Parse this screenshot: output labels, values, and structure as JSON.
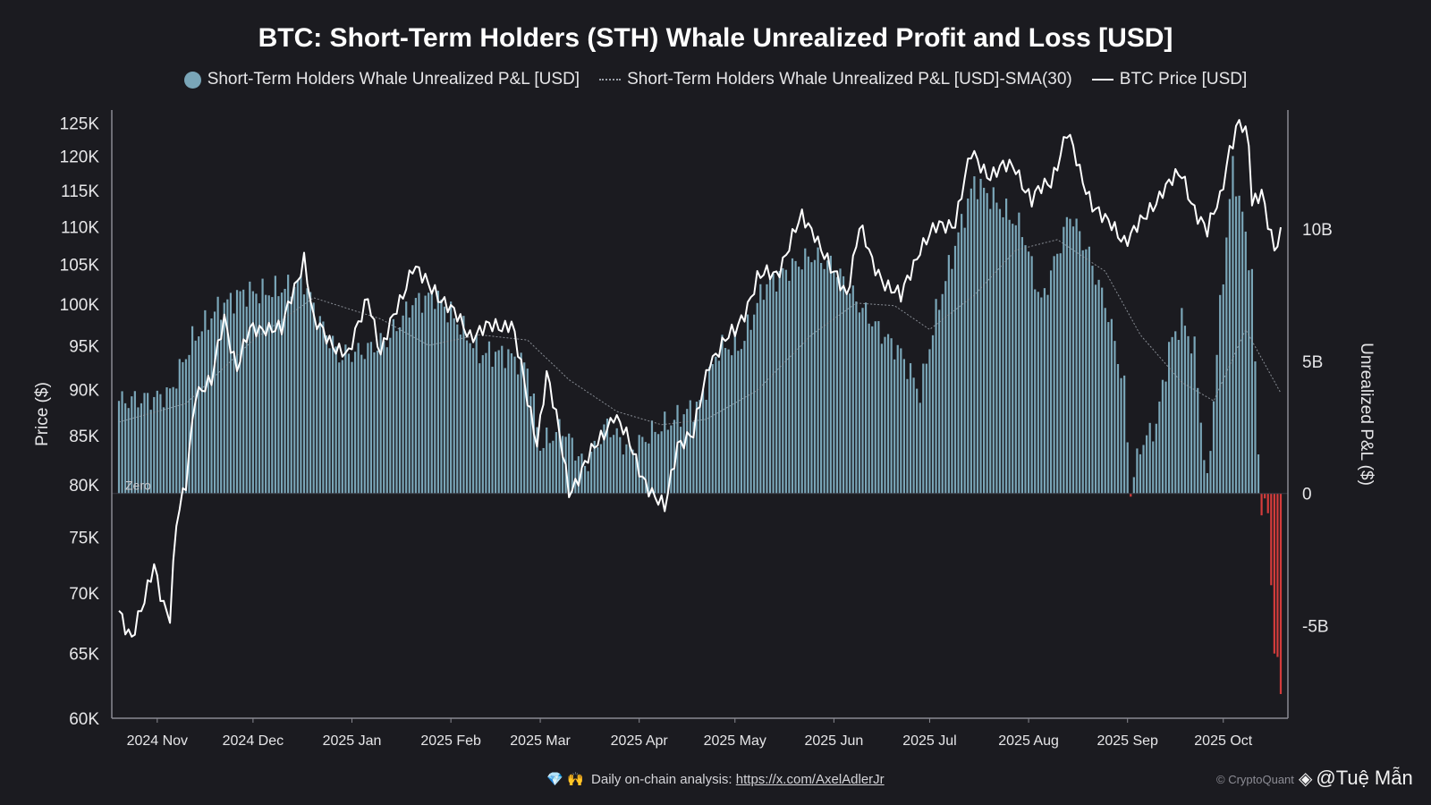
{
  "title": "BTC: Short-Term Holders (STH) Whale Unrealized Profit and Loss [USD]",
  "legend": [
    {
      "label": "Short-Term Holders Whale Unrealized P&L [USD]",
      "symbol": "dot",
      "color": "#7aa6b8"
    },
    {
      "label": "Short-Term Holders Whale Unrealized P&L [USD]-SMA(30)",
      "symbol": "dotted-line",
      "color": "#9aa0a8"
    },
    {
      "label": "BTC Price [USD]",
      "symbol": "line",
      "color": "#ffffff"
    }
  ],
  "footer": {
    "icons": "💎 🙌",
    "text": "Daily on-chain analysis:",
    "link": "https://x.com/AxelAdlerJr"
  },
  "copyright": "© CryptoQuant",
  "watermark": "@Tuệ Mẫn",
  "chart_data": {
    "type": "bar",
    "colors": {
      "positive": "#7aa6b8",
      "negative": "#d43c3c",
      "price": "#ffffff",
      "sma": "#9aa0a8",
      "background": "#1b1b20"
    },
    "x_ticks": [
      "2024 Nov",
      "2024 Dec",
      "2025 Jan",
      "2025 Feb",
      "2025 Mar",
      "2025 Apr",
      "2025 May",
      "2025 Jun",
      "2025 Jul",
      "2025 Aug",
      "2025 Sep",
      "2025 Oct"
    ],
    "y_left": {
      "label": "Price ($)",
      "scale": "log",
      "range": [
        60000,
        127000
      ],
      "ticks": [
        {
          "v": 60000,
          "t": "60K"
        },
        {
          "v": 65000,
          "t": "65K"
        },
        {
          "v": 70000,
          "t": "70K"
        },
        {
          "v": 75000,
          "t": "75K"
        },
        {
          "v": 80000,
          "t": "80K"
        },
        {
          "v": 85000,
          "t": "85K"
        },
        {
          "v": 90000,
          "t": "90K"
        },
        {
          "v": 95000,
          "t": "95K"
        },
        {
          "v": 100000,
          "t": "100K"
        },
        {
          "v": 105000,
          "t": "105K"
        },
        {
          "v": 110000,
          "t": "110K"
        },
        {
          "v": 115000,
          "t": "115K"
        },
        {
          "v": 120000,
          "t": "120K"
        },
        {
          "v": 125000,
          "t": "125K"
        }
      ]
    },
    "y_right": {
      "label": "Unrealized P&L ($)",
      "range": [
        -8.5,
        14.5
      ],
      "unit": "billion USD",
      "ticks": [
        {
          "v": -5,
          "t": "-5B"
        },
        {
          "v": 0,
          "t": "0"
        },
        {
          "v": 5,
          "t": "5B"
        },
        {
          "v": 10,
          "t": "10B"
        }
      ]
    },
    "zero_label": "Zero",
    "pnl_knots_billion": [
      [
        "2024-10-20",
        3.5
      ],
      [
        "2024-10-31",
        3.6
      ],
      [
        "2024-11-05",
        3.8
      ],
      [
        "2024-11-12",
        5.8
      ],
      [
        "2024-11-20",
        7.0
      ],
      [
        "2024-11-28",
        7.6
      ],
      [
        "2024-12-05",
        7.6
      ],
      [
        "2024-12-12",
        7.8
      ],
      [
        "2024-12-17",
        8.0
      ],
      [
        "2024-12-22",
        6.5
      ],
      [
        "2024-12-28",
        5.2
      ],
      [
        "2025-01-05",
        5.4
      ],
      [
        "2025-01-12",
        5.8
      ],
      [
        "2025-01-20",
        7.2
      ],
      [
        "2025-01-27",
        7.5
      ],
      [
        "2025-02-03",
        6.5
      ],
      [
        "2025-02-10",
        5.3
      ],
      [
        "2025-02-18",
        5.3
      ],
      [
        "2025-02-25",
        4.8
      ],
      [
        "2025-03-01",
        1.8
      ],
      [
        "2025-03-08",
        2.5
      ],
      [
        "2025-03-15",
        1.0
      ],
      [
        "2025-03-22",
        2.6
      ],
      [
        "2025-03-29",
        1.6
      ],
      [
        "2025-04-05",
        2.3
      ],
      [
        "2025-04-12",
        2.8
      ],
      [
        "2025-04-20",
        3.4
      ],
      [
        "2025-04-26",
        5.5
      ],
      [
        "2025-05-03",
        5.6
      ],
      [
        "2025-05-10",
        7.8
      ],
      [
        "2025-05-18",
        8.5
      ],
      [
        "2025-05-25",
        9.0
      ],
      [
        "2025-06-01",
        8.6
      ],
      [
        "2025-06-08",
        7.3
      ],
      [
        "2025-06-15",
        6.2
      ],
      [
        "2025-06-22",
        5.3
      ],
      [
        "2025-06-28",
        3.8
      ],
      [
        "2025-07-03",
        6.8
      ],
      [
        "2025-07-10",
        9.8
      ],
      [
        "2025-07-15",
        11.8
      ],
      [
        "2025-07-22",
        11.0
      ],
      [
        "2025-07-30",
        10.0
      ],
      [
        "2025-08-05",
        7.2
      ],
      [
        "2025-08-14",
        10.6
      ],
      [
        "2025-08-20",
        9.0
      ],
      [
        "2025-08-26",
        6.8
      ],
      [
        "2025-08-31",
        4.0
      ],
      [
        "2025-09-02",
        0.1
      ],
      [
        "2025-09-05",
        1.8
      ],
      [
        "2025-09-10",
        2.6
      ],
      [
        "2025-09-14",
        5.5
      ],
      [
        "2025-09-18",
        6.6
      ],
      [
        "2025-09-22",
        5.4
      ],
      [
        "2025-09-26",
        0.2
      ],
      [
        "2025-09-30",
        7.0
      ],
      [
        "2025-10-04",
        12.4
      ],
      [
        "2025-10-07",
        10.5
      ],
      [
        "2025-10-10",
        8.2
      ],
      [
        "2025-10-12",
        1.5
      ],
      [
        "2025-10-13",
        -0.4
      ],
      [
        "2025-10-15",
        -0.8
      ],
      [
        "2025-10-17",
        -5.8
      ],
      [
        "2025-10-19",
        -7.5
      ]
    ],
    "sma_knots_billion": [
      [
        "2024-10-20",
        2.7
      ],
      [
        "2024-11-10",
        3.4
      ],
      [
        "2024-12-01",
        5.8
      ],
      [
        "2024-12-20",
        7.4
      ],
      [
        "2025-01-10",
        6.6
      ],
      [
        "2025-01-25",
        5.6
      ],
      [
        "2025-02-10",
        6.0
      ],
      [
        "2025-02-25",
        5.8
      ],
      [
        "2025-03-10",
        4.3
      ],
      [
        "2025-03-25",
        3.1
      ],
      [
        "2025-04-08",
        2.6
      ],
      [
        "2025-04-22",
        2.8
      ],
      [
        "2025-05-08",
        3.9
      ],
      [
        "2025-05-25",
        6.0
      ],
      [
        "2025-06-08",
        7.2
      ],
      [
        "2025-06-20",
        7.1
      ],
      [
        "2025-07-01",
        6.2
      ],
      [
        "2025-07-15",
        7.5
      ],
      [
        "2025-07-28",
        9.2
      ],
      [
        "2025-08-10",
        9.6
      ],
      [
        "2025-08-25",
        8.4
      ],
      [
        "2025-09-05",
        6.0
      ],
      [
        "2025-09-18",
        4.2
      ],
      [
        "2025-09-28",
        3.5
      ],
      [
        "2025-10-08",
        6.2
      ],
      [
        "2025-10-19",
        3.8
      ]
    ],
    "price_knots": [
      [
        "2024-10-20",
        68500
      ],
      [
        "2024-10-24",
        66500
      ],
      [
        "2024-10-28",
        69000
      ],
      [
        "2024-10-31",
        72500
      ],
      [
        "2024-11-03",
        69300
      ],
      [
        "2024-11-05",
        68000
      ],
      [
        "2024-11-07",
        76000
      ],
      [
        "2024-11-10",
        80000
      ],
      [
        "2024-11-13",
        90000
      ],
      [
        "2024-11-18",
        90500
      ],
      [
        "2024-11-22",
        98500
      ],
      [
        "2024-11-26",
        92500
      ],
      [
        "2024-11-30",
        96500
      ],
      [
        "2024-12-05",
        97500
      ],
      [
        "2024-12-10",
        96500
      ],
      [
        "2024-12-13",
        101000
      ],
      [
        "2024-12-17",
        106000
      ],
      [
        "2024-12-20",
        97500
      ],
      [
        "2024-12-26",
        95500
      ],
      [
        "2024-12-31",
        93500
      ],
      [
        "2025-01-06",
        101500
      ],
      [
        "2025-01-10",
        93500
      ],
      [
        "2025-01-15",
        99800
      ],
      [
        "2025-01-20",
        104500
      ],
      [
        "2025-01-23",
        103000
      ],
      [
        "2025-01-27",
        102000
      ],
      [
        "2025-02-01",
        99000
      ],
      [
        "2025-02-07",
        96500
      ],
      [
        "2025-02-14",
        97000
      ],
      [
        "2025-02-20",
        98000
      ],
      [
        "2025-02-25",
        88500
      ],
      [
        "2025-02-28",
        84500
      ],
      [
        "2025-03-03",
        92000
      ],
      [
        "2025-03-10",
        79500
      ],
      [
        "2025-03-18",
        83500
      ],
      [
        "2025-03-24",
        87500
      ],
      [
        "2025-03-31",
        82500
      ],
      [
        "2025-04-06",
        78500
      ],
      [
        "2025-04-09",
        77500
      ],
      [
        "2025-04-13",
        84500
      ],
      [
        "2025-04-18",
        84800
      ],
      [
        "2025-04-23",
        93500
      ],
      [
        "2025-05-01",
        96500
      ],
      [
        "2025-05-08",
        103000
      ],
      [
        "2025-05-14",
        104000
      ],
      [
        "2025-05-22",
        111000
      ],
      [
        "2025-05-26",
        109500
      ],
      [
        "2025-05-31",
        104000
      ],
      [
        "2025-06-05",
        101500
      ],
      [
        "2025-06-09",
        110000
      ],
      [
        "2025-06-13",
        105000
      ],
      [
        "2025-06-22",
        100500
      ],
      [
        "2025-06-28",
        107500
      ],
      [
        "2025-07-03",
        109500
      ],
      [
        "2025-07-09",
        111000
      ],
      [
        "2025-07-14",
        120000
      ],
      [
        "2025-07-20",
        117500
      ],
      [
        "2025-07-28",
        118500
      ],
      [
        "2025-08-02",
        113500
      ],
      [
        "2025-08-08",
        116500
      ],
      [
        "2025-08-13",
        123500
      ],
      [
        "2025-08-17",
        117500
      ],
      [
        "2025-08-21",
        113500
      ],
      [
        "2025-08-25",
        110500
      ],
      [
        "2025-08-31",
        108500
      ],
      [
        "2025-09-06",
        110500
      ],
      [
        "2025-09-12",
        115500
      ],
      [
        "2025-09-18",
        117000
      ],
      [
        "2025-09-22",
        112800
      ],
      [
        "2025-09-26",
        109000
      ],
      [
        "2025-09-30",
        114000
      ],
      [
        "2025-10-03",
        121500
      ],
      [
        "2025-10-06",
        125000
      ],
      [
        "2025-10-09",
        121500
      ],
      [
        "2025-10-10",
        113000
      ],
      [
        "2025-10-13",
        115500
      ],
      [
        "2025-10-17",
        106500
      ],
      [
        "2025-10-19",
        108300
      ]
    ]
  }
}
